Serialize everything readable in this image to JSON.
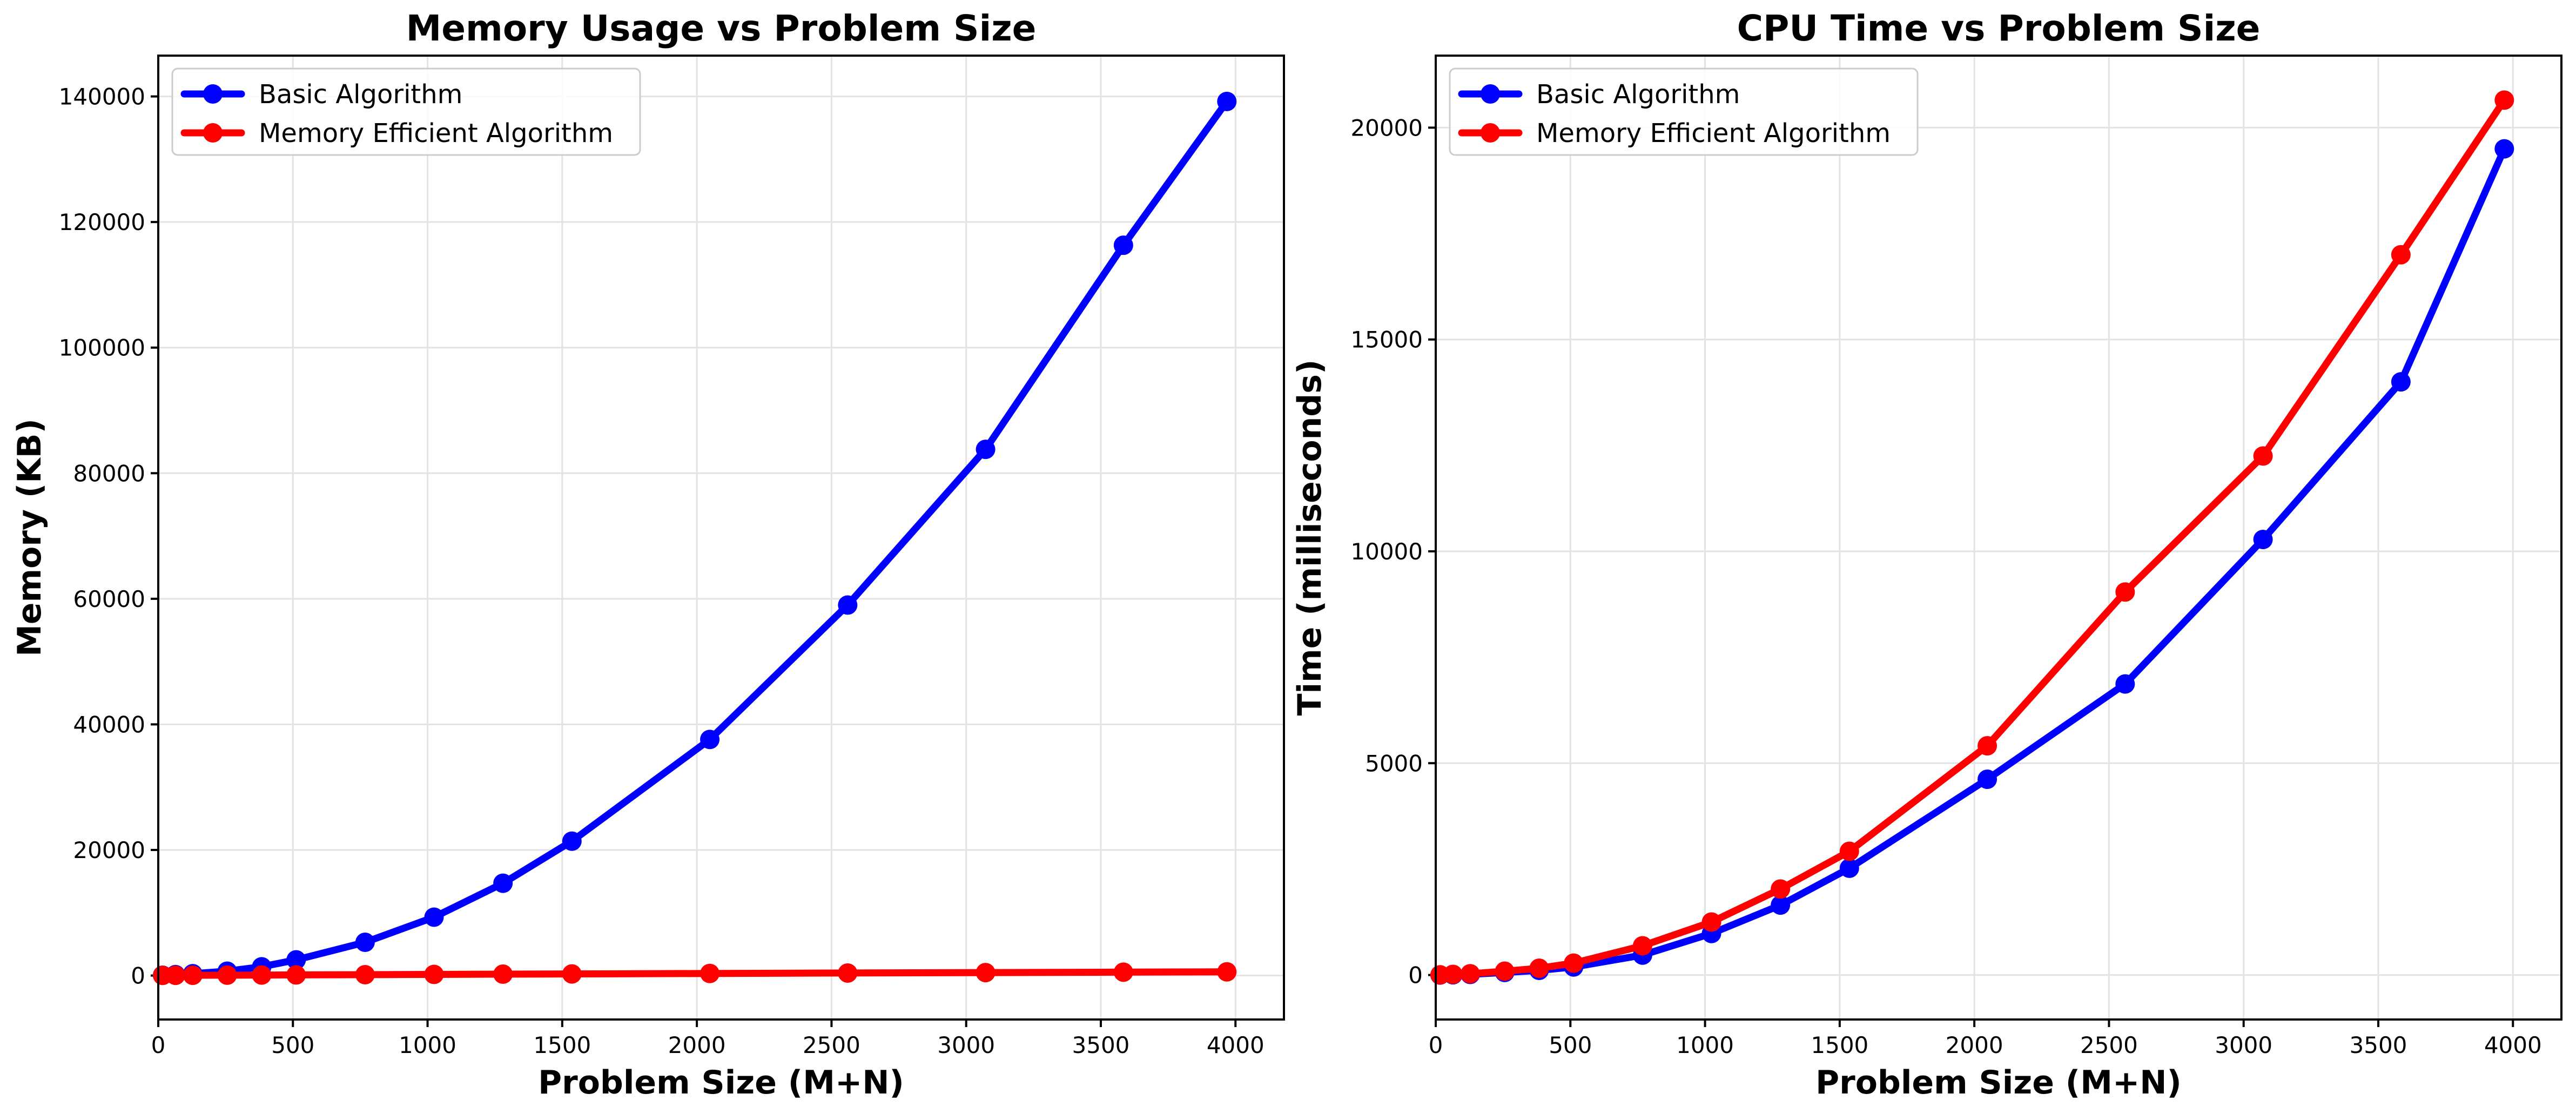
{
  "chart_data": [
    {
      "type": "line",
      "title": "Memory Usage vs Problem Size",
      "xlabel": "Problem Size (M+N)",
      "ylabel": "Memory (KB)",
      "xlim": [
        0,
        4180
      ],
      "ylim": [
        -7000,
        146500
      ],
      "xticks": [
        0,
        500,
        1000,
        1500,
        2000,
        2500,
        3000,
        3500,
        4000
      ],
      "yticks": [
        0,
        20000,
        40000,
        60000,
        80000,
        100000,
        120000,
        140000
      ],
      "grid": true,
      "legend_position": "top-left",
      "x": [
        16,
        64,
        128,
        256,
        384,
        512,
        768,
        1024,
        1280,
        1536,
        2048,
        2560,
        3072,
        3584,
        3968
      ],
      "series": [
        {
          "name": "Basic Algorithm",
          "color": "#0000ff",
          "values": [
            50,
            150,
            300,
            700,
            1400,
            2500,
            5300,
            9300,
            14700,
            21400,
            37600,
            59000,
            83800,
            116300,
            139200
          ]
        },
        {
          "name": "Memory Efficient Algorithm",
          "color": "#ff0000",
          "values": [
            20,
            30,
            40,
            60,
            80,
            100,
            140,
            180,
            220,
            260,
            330,
            400,
            470,
            540,
            590
          ]
        }
      ]
    },
    {
      "type": "line",
      "title": "CPU Time vs Problem Size",
      "xlabel": "Problem Size (M+N)",
      "ylabel": "Time (milliseconds)",
      "xlim": [
        0,
        4180
      ],
      "ylim": [
        -1050,
        21700
      ],
      "xticks": [
        0,
        500,
        1000,
        1500,
        2000,
        2500,
        3000,
        3500,
        4000
      ],
      "yticks": [
        0,
        5000,
        10000,
        15000,
        20000
      ],
      "grid": true,
      "legend_position": "top-left",
      "x": [
        16,
        64,
        128,
        256,
        384,
        512,
        768,
        1024,
        1280,
        1536,
        2048,
        2560,
        3072,
        3584,
        3968
      ],
      "series": [
        {
          "name": "Basic Algorithm",
          "color": "#0000ff",
          "values": [
            0,
            5,
            15,
            60,
            110,
            190,
            470,
            980,
            1650,
            2520,
            4620,
            6870,
            10280,
            14000,
            19500
          ]
        },
        {
          "name": "Memory Efficient Algorithm",
          "color": "#ff0000",
          "values": [
            5,
            15,
            30,
            90,
            160,
            280,
            690,
            1250,
            2030,
            2920,
            5410,
            9040,
            12250,
            17000,
            20650
          ]
        }
      ]
    }
  ]
}
